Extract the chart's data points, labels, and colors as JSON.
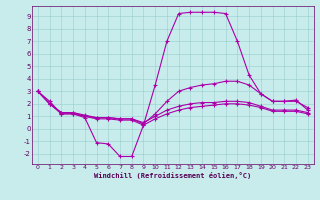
{
  "xlabel": "Windchill (Refroidissement éolien,°C)",
  "background_color": "#c8ecec",
  "line_color": "#aa00aa",
  "xlim": [
    -0.5,
    23.5
  ],
  "ylim": [
    -2.8,
    9.8
  ],
  "xticks": [
    0,
    1,
    2,
    3,
    4,
    5,
    6,
    7,
    8,
    9,
    10,
    11,
    12,
    13,
    14,
    15,
    16,
    17,
    18,
    19,
    20,
    21,
    22,
    23
  ],
  "yticks": [
    -2,
    -1,
    0,
    1,
    2,
    3,
    4,
    5,
    6,
    7,
    8,
    9
  ],
  "series": [
    [
      3.0,
      2.2,
      1.2,
      1.2,
      0.9,
      -1.1,
      -1.2,
      -2.2,
      -2.2,
      0.3,
      3.5,
      7.0,
      9.2,
      9.3,
      9.3,
      9.3,
      9.2,
      7.0,
      4.3,
      2.8,
      2.2,
      2.2,
      2.3,
      1.5
    ],
    [
      3.0,
      2.0,
      1.3,
      1.3,
      1.1,
      0.9,
      0.9,
      0.8,
      0.8,
      0.4,
      1.2,
      2.2,
      3.0,
      3.3,
      3.5,
      3.6,
      3.8,
      3.8,
      3.5,
      2.8,
      2.2,
      2.2,
      2.2,
      1.7
    ],
    [
      3.0,
      2.0,
      1.3,
      1.3,
      1.0,
      0.9,
      0.9,
      0.8,
      0.8,
      0.5,
      1.0,
      1.5,
      1.8,
      2.0,
      2.1,
      2.1,
      2.2,
      2.2,
      2.1,
      1.8,
      1.5,
      1.5,
      1.5,
      1.3
    ],
    [
      3.0,
      2.0,
      1.2,
      1.2,
      1.0,
      0.8,
      0.8,
      0.7,
      0.7,
      0.3,
      0.8,
      1.2,
      1.5,
      1.7,
      1.8,
      1.9,
      2.0,
      2.0,
      1.9,
      1.7,
      1.4,
      1.4,
      1.4,
      1.2
    ]
  ]
}
